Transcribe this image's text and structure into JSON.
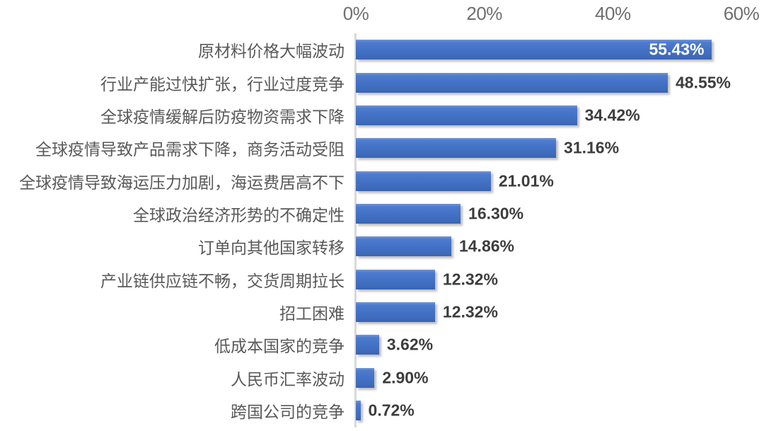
{
  "chart_data": {
    "type": "bar",
    "orientation": "horizontal",
    "title": "",
    "xlabel": "",
    "ylabel": "",
    "categories": [
      "原材料价格大幅波动",
      "行业产能过快扩张，行业过度竞争",
      "全球疫情缓解后防疫物资需求下降",
      "全球疫情导致产品需求下降，商务活动受阻",
      "全球疫情导致海运压力加剧，海运费居高不下",
      "全球政治经济形势的不确定性",
      "订单向其他国家转移",
      "产业链供应链不畅，交货周期拉长",
      "招工困难",
      "低成本国家的竞争",
      "人民币汇率波动",
      "跨国公司的竞争"
    ],
    "values": [
      55.43,
      48.55,
      34.42,
      31.16,
      21.01,
      16.3,
      14.86,
      12.32,
      12.32,
      3.62,
      2.9,
      0.72
    ],
    "value_labels": [
      "55.43%",
      "48.55%",
      "34.42%",
      "31.16%",
      "21.01%",
      "16.30%",
      "14.86%",
      "12.32%",
      "12.32%",
      "3.62%",
      "2.90%",
      "0.72%"
    ],
    "value_label_inside": [
      true,
      false,
      false,
      false,
      false,
      false,
      false,
      false,
      false,
      false,
      false,
      false
    ],
    "x_ticks": [
      "0%",
      "20%",
      "40%",
      "60%"
    ],
    "xlim": [
      0,
      60
    ],
    "grid": false,
    "legend": false,
    "axis_position": "top"
  },
  "colors": {
    "background": "#ffffff",
    "bar_top": "#7297d8",
    "bar_mid": "#4372c6",
    "bar_bottom": "#3a63af",
    "value_label": "#3d3d3d",
    "value_label_inside": "#ffffff",
    "category_label": "#595959",
    "tick_label": "#6f6f6f",
    "axis_line": "#d9d9d9"
  }
}
